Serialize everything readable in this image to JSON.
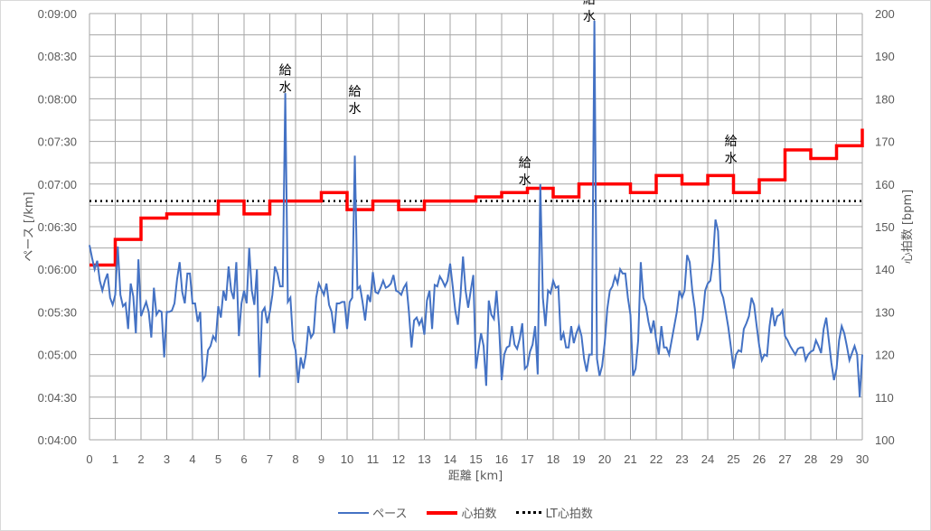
{
  "chart_data": {
    "type": "line",
    "title": "",
    "xlabel": "距離 [km]",
    "ylabel_left": "ペース [/km]",
    "ylabel_right": "心拍数 [bpm]",
    "xlim": [
      0,
      30
    ],
    "ylim_left": [
      "0:04:00",
      "0:09:00"
    ],
    "ylim_right": [
      100,
      200
    ],
    "x_ticks": [
      "0",
      "1",
      "2",
      "3",
      "4",
      "5",
      "6",
      "7",
      "8",
      "9",
      "10",
      "11",
      "12",
      "13",
      "14",
      "15",
      "16",
      "17",
      "18",
      "19",
      "20",
      "21",
      "22",
      "23",
      "24",
      "25",
      "26",
      "27",
      "28",
      "29",
      "30"
    ],
    "y_ticks_left": [
      "0:09:00",
      "0:08:30",
      "0:08:00",
      "0:07:30",
      "0:07:00",
      "0:06:30",
      "0:06:00",
      "0:05:30",
      "0:05:00",
      "0:04:30",
      "0:04:00"
    ],
    "y_ticks_right": [
      "200",
      "190",
      "180",
      "170",
      "160",
      "150",
      "140",
      "130",
      "120",
      "110",
      "100"
    ],
    "grid": true,
    "legend_position": "bottom",
    "series": [
      {
        "name": "ペース",
        "color": "#4472C4",
        "axis": "left",
        "unit": "seconds_per_km",
        "x": [
          0,
          0.1,
          0.2,
          0.3,
          0.4,
          0.5,
          0.6,
          0.7,
          0.8,
          0.9,
          1.0,
          1.1,
          1.2,
          1.3,
          1.4,
          1.5,
          1.6,
          1.7,
          1.8,
          1.9,
          2.0,
          2.1,
          2.2,
          2.3,
          2.4,
          2.5,
          2.6,
          2.7,
          2.8,
          2.9,
          3.0,
          3.1,
          3.2,
          3.3,
          3.4,
          3.5,
          3.6,
          3.7,
          3.8,
          3.9,
          4.0,
          4.1,
          4.2,
          4.3,
          4.4,
          4.5,
          4.6,
          4.7,
          4.8,
          4.9,
          5.0,
          5.1,
          5.2,
          5.3,
          5.4,
          5.5,
          5.6,
          5.7,
          5.8,
          5.9,
          6.0,
          6.1,
          6.2,
          6.3,
          6.4,
          6.5,
          6.6,
          6.7,
          6.8,
          6.9,
          7.0,
          7.1,
          7.2,
          7.3,
          7.4,
          7.5,
          7.6,
          7.7,
          7.8,
          7.9,
          8.0,
          8.1,
          8.2,
          8.3,
          8.4,
          8.5,
          8.6,
          8.7,
          8.8,
          8.9,
          9.0,
          9.1,
          9.2,
          9.3,
          9.4,
          9.5,
          9.6,
          9.7,
          9.8,
          9.9,
          10.0,
          10.1,
          10.2,
          10.3,
          10.4,
          10.5,
          10.6,
          10.7,
          10.8,
          10.9,
          11.0,
          11.1,
          11.2,
          11.3,
          11.4,
          11.5,
          11.6,
          11.7,
          11.8,
          11.9,
          12.0,
          12.1,
          12.2,
          12.3,
          12.4,
          12.5,
          12.6,
          12.7,
          12.8,
          12.9,
          13.0,
          13.1,
          13.2,
          13.3,
          13.4,
          13.5,
          13.6,
          13.7,
          13.8,
          13.9,
          14.0,
          14.1,
          14.2,
          14.3,
          14.4,
          14.5,
          14.6,
          14.7,
          14.8,
          14.9,
          15.0,
          15.1,
          15.2,
          15.3,
          15.4,
          15.5,
          15.6,
          15.7,
          15.8,
          15.9,
          16.0,
          16.1,
          16.2,
          16.3,
          16.4,
          16.5,
          16.6,
          16.7,
          16.8,
          16.9,
          17.0,
          17.1,
          17.2,
          17.3,
          17.4,
          17.5,
          17.6,
          17.7,
          17.8,
          17.9,
          18.0,
          18.1,
          18.2,
          18.3,
          18.4,
          18.5,
          18.6,
          18.7,
          18.8,
          18.9,
          19.0,
          19.1,
          19.2,
          19.3,
          19.4,
          19.5,
          19.6,
          19.7,
          19.8,
          19.9,
          20.0,
          20.1,
          20.2,
          20.3,
          20.4,
          20.5,
          20.6,
          20.7,
          20.8,
          20.9,
          21.0,
          21.1,
          21.2,
          21.3,
          21.4,
          21.5,
          21.6,
          21.7,
          21.8,
          21.9,
          22.0,
          22.1,
          22.2,
          22.3,
          22.4,
          22.5,
          22.6,
          22.7,
          22.8,
          22.9,
          23.0,
          23.1,
          23.2,
          23.3,
          23.4,
          23.5,
          23.6,
          23.7,
          23.8,
          23.9,
          24.0,
          24.1,
          24.2,
          24.3,
          24.4,
          24.5,
          24.6,
          24.7,
          24.8,
          24.9,
          25.0,
          25.1,
          25.2,
          25.3,
          25.4,
          25.5,
          25.6,
          25.7,
          25.8,
          25.9,
          26.0,
          26.1,
          26.2,
          26.3,
          26.4,
          26.5,
          26.6,
          26.7,
          26.8,
          26.9,
          27.0,
          27.1,
          27.2,
          27.3,
          27.4,
          27.5,
          27.6,
          27.7,
          27.8,
          27.9,
          28.0,
          28.1,
          28.2,
          28.3,
          28.4,
          28.5,
          28.6,
          28.7,
          28.8,
          28.9,
          29.0,
          29.1,
          29.2,
          29.3,
          29.4,
          29.5,
          29.6,
          29.7,
          29.8,
          29.9,
          30.0
        ],
        "values": [
          377,
          368,
          360,
          366,
          352,
          345,
          352,
          357,
          340,
          335,
          342,
          376,
          342,
          334,
          336,
          318,
          350,
          341,
          315,
          367,
          327,
          332,
          337,
          330,
          312,
          347,
          328,
          331,
          330,
          298,
          330,
          330,
          331,
          336,
          353,
          365,
          344,
          336,
          357,
          357,
          336,
          336,
          323,
          330,
          282,
          285,
          303,
          306,
          313,
          310,
          334,
          326,
          345,
          338,
          362,
          345,
          339,
          365,
          313,
          336,
          345,
          336,
          375,
          345,
          335,
          360,
          284,
          330,
          333,
          322,
          330,
          342,
          362,
          357,
          348,
          348,
          484,
          337,
          340,
          310,
          303,
          280,
          298,
          290,
          300,
          320,
          312,
          315,
          340,
          350,
          346,
          342,
          350,
          335,
          330,
          315,
          336,
          336,
          337,
          337,
          318,
          337,
          340,
          440,
          346,
          348,
          337,
          324,
          342,
          337,
          358,
          344,
          343,
          347,
          352,
          347,
          348,
          350,
          356,
          345,
          344,
          342,
          347,
          350,
          330,
          305,
          324,
          326,
          321,
          325,
          314,
          338,
          345,
          318,
          349,
          348,
          355,
          352,
          348,
          352,
          364,
          348,
          331,
          321,
          341,
          369,
          345,
          333,
          345,
          356,
          290,
          303,
          315,
          306,
          278,
          338,
          328,
          325,
          345,
          320,
          282,
          300,
          305,
          306,
          320,
          307,
          304,
          311,
          322,
          290,
          292,
          302,
          307,
          320,
          286,
          420,
          340,
          320,
          345,
          343,
          352,
          347,
          348,
          310,
          315,
          305,
          305,
          320,
          308,
          315,
          320,
          313,
          297,
          288,
          300,
          300,
          535,
          297,
          285,
          292,
          308,
          332,
          345,
          348,
          355,
          350,
          360,
          357,
          357,
          340,
          328,
          285,
          290,
          310,
          365,
          340,
          334,
          323,
          315,
          324,
          310,
          300,
          320,
          305,
          305,
          300,
          310,
          320,
          330,
          345,
          340,
          345,
          370,
          365,
          345,
          332,
          310,
          316,
          325,
          345,
          350,
          352,
          366,
          395,
          387,
          345,
          340,
          330,
          319,
          305,
          290,
          300,
          303,
          302,
          318,
          322,
          327,
          340,
          335,
          320,
          306,
          296,
          300,
          299,
          320,
          333,
          320,
          327,
          328,
          331,
          313,
          310,
          306,
          303,
          300,
          304,
          305,
          305,
          296,
          300,
          302,
          303,
          310,
          306,
          301,
          318,
          326,
          310,
          294,
          282,
          290,
          310,
          320,
          315,
          306,
          296,
          301,
          306,
          300,
          270,
          300
        ]
      },
      {
        "name": "心拍数",
        "color": "#FF0000",
        "axis": "right",
        "step": true,
        "x": [
          0,
          1,
          2,
          3,
          5,
          6,
          7,
          9,
          10,
          11,
          12,
          13,
          15,
          16,
          17,
          18,
          19,
          21,
          22,
          23,
          24,
          25,
          26,
          27,
          28,
          29,
          30
        ],
        "values": [
          141,
          147,
          152,
          153,
          156,
          153,
          156,
          158,
          154,
          156,
          154,
          156,
          157,
          158,
          159,
          157,
          160,
          158,
          162,
          160,
          162,
          158,
          161,
          168,
          166,
          169,
          173
        ]
      },
      {
        "name": "LT心拍数",
        "color": "#000000",
        "axis": "right",
        "style": "dotted",
        "values": [
          156
        ]
      }
    ],
    "annotations": [
      {
        "text": "給水",
        "x": 7.6,
        "y_pace": "0:08:05"
      },
      {
        "text": "給水",
        "x": 10.3,
        "y_pace": "0:07:50"
      },
      {
        "text": "給水",
        "x": 16.9,
        "y_pace": "0:07:00"
      },
      {
        "text": "給水",
        "x": 19.4,
        "y_pace": "0:08:55"
      },
      {
        "text": "給水",
        "x": 24.9,
        "y_pace": "0:07:15"
      }
    ]
  },
  "legend": {
    "pace": "ペース",
    "hr": "心拍数",
    "lt": "LT心拍数"
  },
  "colors": {
    "pace": "#4472C4",
    "hr": "#FF0000",
    "lt": "#000000",
    "grid": "#A6A6A6",
    "text": "#595959"
  }
}
